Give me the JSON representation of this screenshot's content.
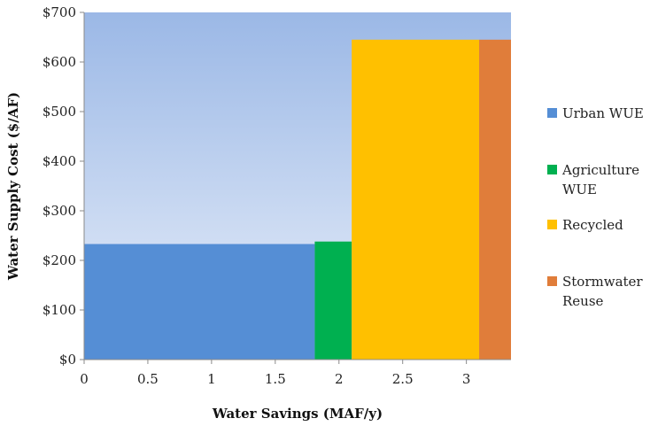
{
  "chart_data": {
    "type": "bar",
    "variant": "supply-cost-curve (variable-width bars)",
    "title": "",
    "xlabel": "Water Savings (MAF/y)",
    "ylabel": "Water Supply Cost ($/AF)",
    "xlim": [
      0,
      3.35
    ],
    "ylim": [
      0,
      700
    ],
    "xticks": [
      0,
      0.5,
      1,
      1.5,
      2,
      2.5,
      3
    ],
    "xtick_labels": [
      "0",
      "0.5",
      "1",
      "1.5",
      "2",
      "2.5",
      "3"
    ],
    "yticks": [
      0,
      100,
      200,
      300,
      400,
      500,
      600,
      700
    ],
    "ytick_labels": [
      "$0",
      "$100",
      "$200",
      "$300",
      "$400",
      "$500",
      "$600",
      "$700"
    ],
    "grid": false,
    "legend_position": "right",
    "plot_background": "gradient light blue (darker at top)",
    "series": [
      {
        "name": "Urban WUE",
        "x_start": 0,
        "x_end": 1.81,
        "value": 233,
        "color": "#558ED5"
      },
      {
        "name": "Agriculture WUE",
        "x_start": 1.81,
        "x_end": 2.1,
        "value": 238,
        "color": "#00B050"
      },
      {
        "name": "Recycled",
        "x_start": 2.1,
        "x_end": 3.1,
        "value": 645,
        "color": "#FFC000"
      },
      {
        "name": "Stormwater Reuse",
        "x_start": 3.1,
        "x_end": 3.35,
        "value": 645,
        "color": "#E07D3A"
      }
    ],
    "legend": [
      {
        "lines": [
          "Urban WUE"
        ],
        "color": "#558ED5"
      },
      {
        "lines": [
          "Agriculture",
          "WUE"
        ],
        "color": "#00B050"
      },
      {
        "lines": [
          "Recycled"
        ],
        "color": "#FFC000"
      },
      {
        "lines": [
          "Stormwater",
          "Reuse"
        ],
        "color": "#E07D3A"
      }
    ]
  }
}
